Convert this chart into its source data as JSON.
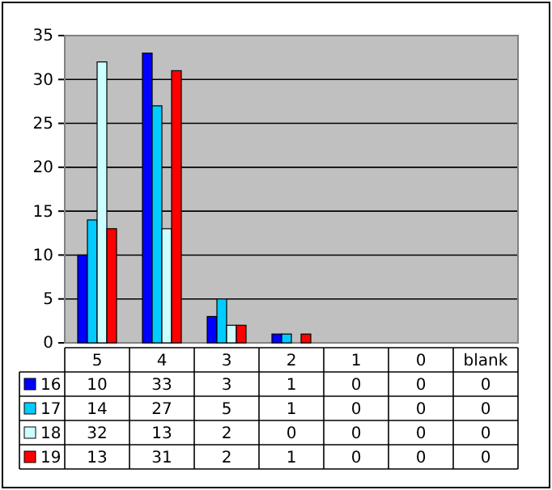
{
  "chart_data": {
    "type": "bar",
    "categories": [
      "5",
      "4",
      "3",
      "2",
      "1",
      "0",
      "blank"
    ],
    "series": [
      {
        "name": "16",
        "color": "#0000ff",
        "values": [
          10,
          33,
          3,
          1,
          0,
          0,
          0
        ]
      },
      {
        "name": "17",
        "color": "#00ccff",
        "values": [
          14,
          27,
          5,
          1,
          0,
          0,
          0
        ]
      },
      {
        "name": "18",
        "color": "#ccffff",
        "values": [
          32,
          13,
          2,
          0,
          0,
          0,
          0
        ]
      },
      {
        "name": "19",
        "color": "#ff0000",
        "values": [
          13,
          31,
          2,
          1,
          0,
          0,
          0
        ]
      }
    ],
    "ylim": [
      0,
      35
    ],
    "yticks": [
      0,
      5,
      10,
      15,
      20,
      25,
      30,
      35
    ],
    "grid": "y",
    "legend": "bottom",
    "data_labels": true
  }
}
